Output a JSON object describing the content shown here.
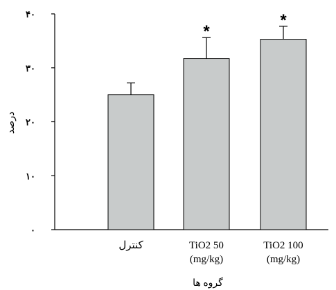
{
  "chart_data": {
    "type": "bar",
    "title": "",
    "xlabel": "گروه ها",
    "ylabel": "درصد",
    "categories": [
      [
        "کنترل"
      ],
      [
        "TiO2 50",
        "(mg/kg)"
      ],
      [
        "TiO2 100",
        "(mg/kg)"
      ]
    ],
    "values": [
      25,
      31.7,
      35.3
    ],
    "errors": [
      2.2,
      3.9,
      2.4
    ],
    "significance": [
      "",
      "*",
      "*"
    ],
    "ylim": [
      0,
      40
    ],
    "yticks": [
      0,
      10,
      20,
      30,
      40
    ],
    "ytick_labels": [
      "۰",
      "۱۰",
      "۲۰",
      "۳۰",
      "۴۰"
    ],
    "grid": false,
    "legend": "none",
    "colors": {
      "bar": "#c8cbcb",
      "edge": "#000000"
    }
  }
}
